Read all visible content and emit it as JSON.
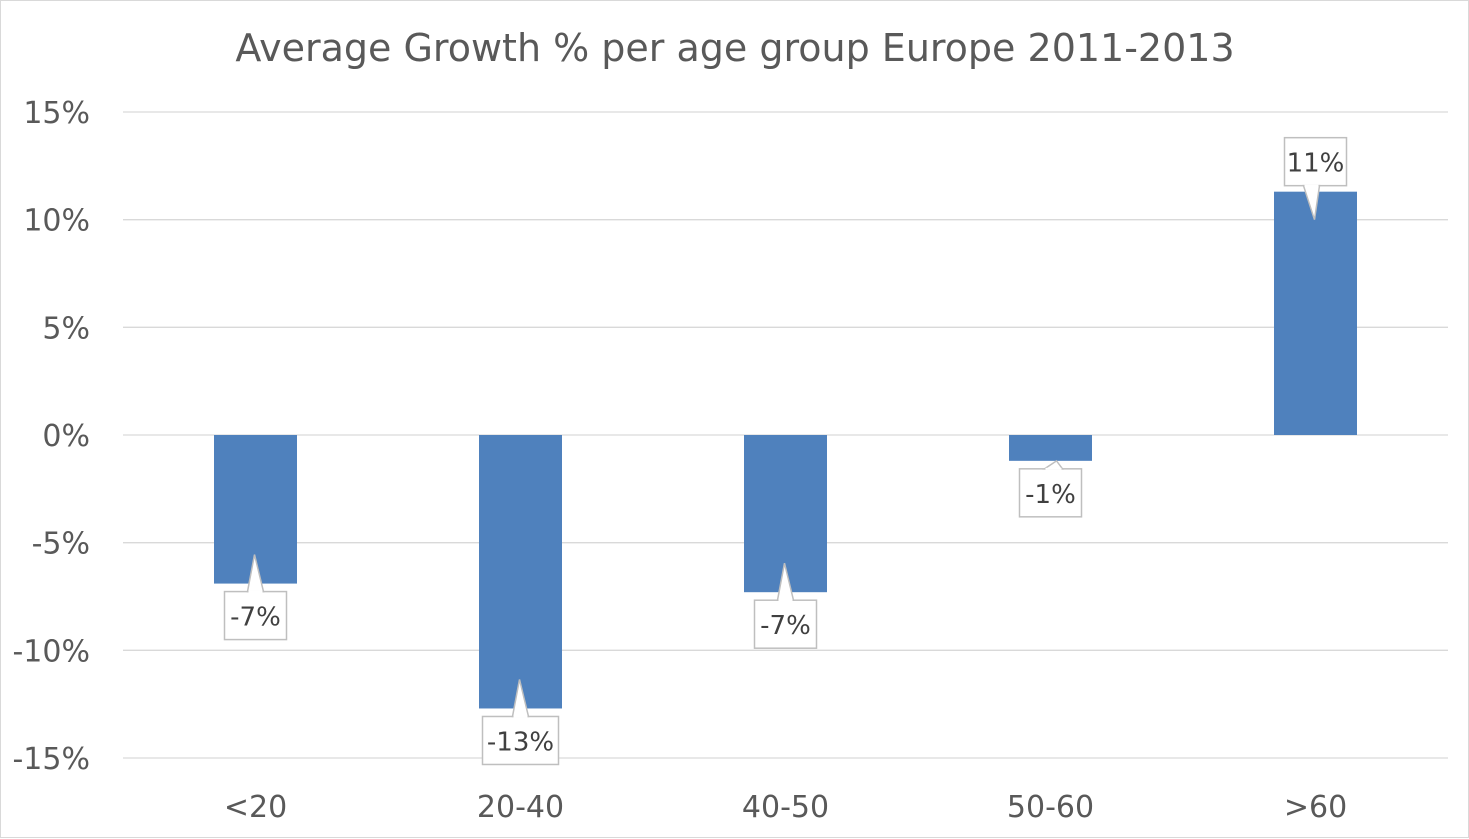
{
  "chart_data": {
    "type": "bar",
    "title": "Average Growth % per age group Europe 2011-2013",
    "categories": [
      "<20",
      "20-40",
      "40-50",
      "50-60",
      ">60"
    ],
    "values": [
      -6.9,
      -12.7,
      -7.3,
      -1.2,
      11.3
    ],
    "data_labels": [
      "-7%",
      "-13%",
      "-7%",
      "-1%",
      "11%"
    ],
    "xlabel": "",
    "ylabel": "",
    "ylim": [
      -15,
      15
    ],
    "yticks": [
      15,
      10,
      5,
      0,
      -5,
      -10,
      -15
    ],
    "ytick_labels": [
      "15%",
      "10%",
      "5%",
      "0%",
      "-5%",
      "-10%",
      "-15%"
    ],
    "grid": true,
    "legend": "none",
    "bar_color": "#4F81BD"
  }
}
